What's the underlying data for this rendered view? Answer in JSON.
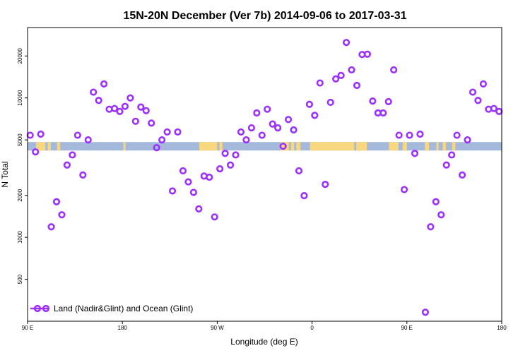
{
  "chart_data": {
    "type": "scatter",
    "title": "15N-20N December (Ver 7b)   2014-09-06 to 2017-03-31",
    "xlabel": "Longitude (deg E)",
    "ylabel": "N Total",
    "scale_y": "log",
    "xlim": [
      90,
      540
    ],
    "ylim": [
      250,
      32000
    ],
    "x_ticks": [
      {
        "value": 90,
        "label": "90 E"
      },
      {
        "value": 180,
        "label": "180"
      },
      {
        "value": 270,
        "label": "90 W"
      },
      {
        "value": 360,
        "label": "0"
      },
      {
        "value": 450,
        "label": "90 E"
      },
      {
        "value": 540,
        "label": "180"
      }
    ],
    "y_ticks": [
      {
        "value": 500,
        "label": "500"
      },
      {
        "value": 1000,
        "label": "1000"
      },
      {
        "value": 2000,
        "label": "2000"
      },
      {
        "value": 5000,
        "label": "5000"
      },
      {
        "value": 10000,
        "label": "10000"
      },
      {
        "value": 20000,
        "label": "20000"
      }
    ],
    "legend": {
      "label": "Land (Nadir&Glint) and Ocean (Glint)",
      "position": "bottom-left"
    },
    "marker_color": "#9b30ff",
    "map_ocean_color": "#a4b9dc",
    "map_land_color": "#f9d77e",
    "series": [
      {
        "name": "Land (Nadir&Glint) and Ocean (Glint)",
        "points": [
          [
            92.5,
            5400
          ],
          [
            97.5,
            4100
          ],
          [
            102.5,
            5500
          ],
          [
            112.5,
            1190
          ],
          [
            117.5,
            1800
          ],
          [
            122.5,
            1450
          ],
          [
            127.5,
            3300
          ],
          [
            132.5,
            3900
          ],
          [
            137.5,
            5400
          ],
          [
            142.5,
            2800
          ],
          [
            147.5,
            5000
          ],
          [
            152.5,
            11000
          ],
          [
            157.5,
            9600
          ],
          [
            162.5,
            12600
          ],
          [
            167.5,
            8300
          ],
          [
            172.5,
            8400
          ],
          [
            177.5,
            8000
          ],
          [
            182.5,
            8700
          ],
          [
            187.5,
            10000
          ],
          [
            192.5,
            6800
          ],
          [
            197.5,
            8600
          ],
          [
            202.5,
            8100
          ],
          [
            207.5,
            6600
          ],
          [
            212.5,
            4400
          ],
          [
            217.5,
            5000
          ],
          [
            222.5,
            5700
          ],
          [
            227.5,
            2150
          ],
          [
            232.5,
            5700
          ],
          [
            237.5,
            3000
          ],
          [
            242.5,
            2500
          ],
          [
            247.5,
            2100
          ],
          [
            252.5,
            1600
          ],
          [
            257.5,
            2750
          ],
          [
            262.5,
            2700
          ],
          [
            267.5,
            1400
          ],
          [
            272.5,
            3100
          ],
          [
            277.5,
            4000
          ],
          [
            282.5,
            3300
          ],
          [
            287.5,
            3900
          ],
          [
            292.5,
            5700
          ],
          [
            297.5,
            5000
          ],
          [
            302.5,
            6100
          ],
          [
            307.5,
            7800
          ],
          [
            312.5,
            5400
          ],
          [
            317.5,
            8300
          ],
          [
            322.5,
            6500
          ],
          [
            327.5,
            6100
          ],
          [
            332.5,
            4500
          ],
          [
            337.5,
            7000
          ],
          [
            342.5,
            5900
          ],
          [
            347.5,
            3000
          ],
          [
            352.5,
            1990
          ],
          [
            357.5,
            9000
          ],
          [
            362.5,
            7500
          ],
          [
            367.5,
            12800
          ],
          [
            372.5,
            2400
          ],
          [
            377.5,
            9300
          ],
          [
            382.5,
            13700
          ],
          [
            387.5,
            14500
          ],
          [
            392.5,
            25000
          ],
          [
            397.5,
            15900
          ],
          [
            402.5,
            12300
          ],
          [
            407.5,
            20500
          ],
          [
            412.5,
            20600
          ],
          [
            417.5,
            9500
          ],
          [
            422.5,
            7800
          ],
          [
            427.5,
            7800
          ],
          [
            432.5,
            9400
          ],
          [
            437.5,
            15900
          ],
          [
            442.5,
            5400
          ],
          [
            447.5,
            2200
          ],
          [
            452.5,
            5400
          ],
          [
            457.5,
            4000
          ],
          [
            462.5,
            5500
          ],
          [
            467.5,
            290
          ],
          [
            472.5,
            1190
          ],
          [
            477.5,
            1800
          ],
          [
            482.5,
            1450
          ],
          [
            487.5,
            3300
          ],
          [
            492.5,
            3900
          ],
          [
            497.5,
            5400
          ],
          [
            502.5,
            2800
          ],
          [
            507.5,
            5000
          ],
          [
            512.5,
            11000
          ],
          [
            517.5,
            9600
          ],
          [
            522.5,
            12600
          ],
          [
            527.5,
            8300
          ],
          [
            532.5,
            8400
          ],
          [
            537.5,
            8000
          ]
        ]
      }
    ],
    "map_strip": {
      "y_value": 4500,
      "land_ranges": [
        [
          98,
          107
        ],
        [
          109,
          112
        ],
        [
          118,
          121
        ],
        [
          181,
          183
        ],
        [
          253,
          270
        ],
        [
          272,
          275
        ],
        [
          330,
          338
        ],
        [
          340,
          343
        ],
        [
          345,
          349
        ],
        [
          358,
          400
        ],
        [
          402,
          412
        ],
        [
          433,
          442
        ],
        [
          446,
          450
        ],
        [
          467,
          471
        ],
        [
          478,
          480
        ],
        [
          484,
          487
        ],
        [
          493,
          496
        ]
      ]
    }
  }
}
